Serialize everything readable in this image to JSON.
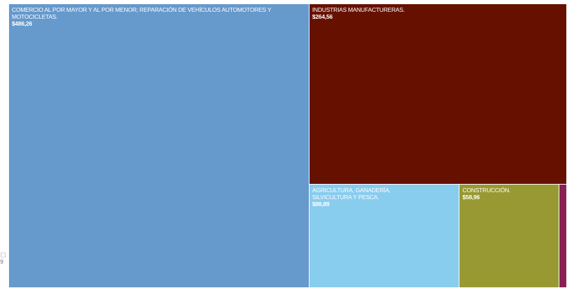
{
  "chart_data": {
    "type": "treemap",
    "cells": [
      {
        "label": "COMERCIO AL POR MAYOR Y AL POR MENOR; REPARACIÓN DE VEHÍCULOS AUTOMOTORES Y MOTOCICLETAS.",
        "value_label": "$486,26",
        "value": 486.26,
        "color": "#6699cc"
      },
      {
        "label": "INDUSTRIAS MANUFACTURERAS.",
        "value_label": "$264,56",
        "value": 264.56,
        "color": "#661100"
      },
      {
        "label": "AGRICULTURA, GANADERÍA, SILVICULTURA Y PESCA.",
        "value_label": "$88,89",
        "value": 88.89,
        "color": "#88ccee"
      },
      {
        "label": "CONSTRUCCIÓN.",
        "value_label": "$58,96",
        "value": 58.96,
        "color": "#999933"
      },
      {
        "label": "",
        "value_label": "",
        "value": 4.5,
        "color": "#882255"
      }
    ]
  },
  "edge_glyph": "9"
}
